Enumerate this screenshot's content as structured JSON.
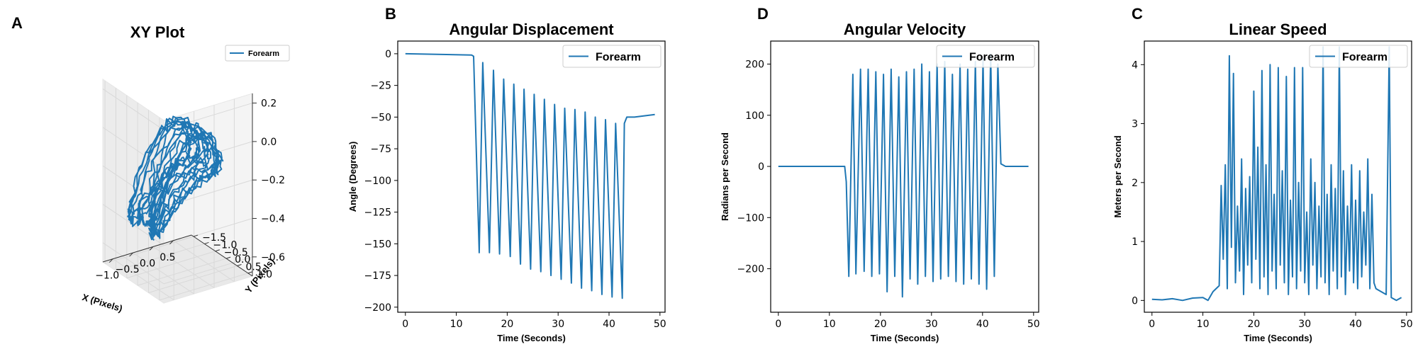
{
  "colors": {
    "series": "#1f77b4",
    "pane": "#f2f2f2",
    "grid": "#d9d9d9"
  },
  "chart_data": [
    {
      "id": "xyplot",
      "panel_label": "A",
      "type": "line3d",
      "title": "XY Plot",
      "xlabel": "X (Pixels)",
      "ylabel": "Y (Pixels)",
      "zlabel": "",
      "xlim": [
        -1.25,
        0.95
      ],
      "ylim": [
        -1.6,
        1.2
      ],
      "zlim": [
        -0.7,
        0.25
      ],
      "xticks": [
        "−1.0",
        "−0.5",
        "0.0",
        "0.5"
      ],
      "xtick_values": [
        -1.0,
        -0.5,
        0.0,
        0.5
      ],
      "yticks": [
        "−1.5",
        "−1.0",
        "−0.5",
        "0.0",
        "0.5",
        "1.0"
      ],
      "ytick_values": [
        -1.5,
        -1.0,
        -0.5,
        0.0,
        0.5,
        1.0
      ],
      "zticks": [
        "−0.6",
        "−0.4",
        "−0.2",
        "0.0",
        "0.2"
      ],
      "ztick_values": [
        -0.6,
        -0.4,
        -0.2,
        0.0,
        0.2
      ],
      "legend": "top-right",
      "series": [
        {
          "name": "Forearm",
          "trajectory": "oscillating 3D path, about 15 loops"
        }
      ]
    },
    {
      "id": "angdisp",
      "panel_label": "B",
      "type": "line",
      "title": "Angular Displacement",
      "xlabel": "Time (Seconds)",
      "ylabel": "Angle (Degrees)",
      "xlim": [
        -1.5,
        51
      ],
      "ylim": [
        -204,
        10
      ],
      "xticks": [
        "0",
        "10",
        "20",
        "30",
        "40",
        "50"
      ],
      "xtick_values": [
        0,
        10,
        20,
        30,
        40,
        50
      ],
      "yticks": [
        "0",
        "−25",
        "−50",
        "−75",
        "−100",
        "−125",
        "−150",
        "−175",
        "−200"
      ],
      "ytick_values": [
        0,
        -25,
        -50,
        -75,
        -100,
        -125,
        -150,
        -175,
        -200
      ],
      "legend": "top-right",
      "series": [
        {
          "name": "Forearm",
          "x": [
            0,
            13.0,
            13.4,
            14.5,
            15.2,
            16.5,
            17.3,
            18.5,
            19.3,
            20.6,
            21.3,
            22.6,
            23.3,
            24.6,
            25.3,
            26.6,
            27.3,
            28.6,
            29.3,
            30.6,
            31.3,
            32.6,
            33.3,
            34.6,
            35.3,
            36.6,
            37.3,
            38.6,
            39.3,
            40.6,
            41.3,
            42.6,
            43.0,
            43.5,
            45.0,
            49.0
          ],
          "y": [
            0,
            -1,
            -2,
            -157,
            -7,
            -157,
            -13,
            -158,
            -20,
            -160,
            -24,
            -166,
            -28,
            -170,
            -32,
            -172,
            -36,
            -175,
            -40,
            -178,
            -43,
            -181,
            -44,
            -185,
            -46,
            -187,
            -50,
            -190,
            -52,
            -192,
            -55,
            -193,
            -55,
            -50,
            -50,
            -48
          ]
        }
      ]
    },
    {
      "id": "angvel",
      "panel_label": "D",
      "type": "line",
      "title": "Angular Velocity",
      "xlabel": "Time (Seconds)",
      "ylabel": "Radians per Second",
      "xlim": [
        -1.5,
        51
      ],
      "ylim": [
        -285,
        245
      ],
      "xticks": [
        "0",
        "10",
        "20",
        "30",
        "40",
        "50"
      ],
      "xtick_values": [
        0,
        10,
        20,
        30,
        40,
        50
      ],
      "yticks": [
        "200",
        "100",
        "0",
        "−100",
        "−200"
      ],
      "ytick_values": [
        200,
        100,
        0,
        -100,
        -200
      ],
      "legend": "top-right",
      "series": [
        {
          "name": "Forearm",
          "x": [
            0,
            13.0,
            13.3,
            13.8,
            14.6,
            15.2,
            16.1,
            16.8,
            17.6,
            18.3,
            19.1,
            19.8,
            20.6,
            21.3,
            22.1,
            22.8,
            23.6,
            24.3,
            25.1,
            25.8,
            26.6,
            27.3,
            28.1,
            28.8,
            29.6,
            30.3,
            31.1,
            31.8,
            32.6,
            33.3,
            34.1,
            34.8,
            35.6,
            36.3,
            37.1,
            37.8,
            38.6,
            39.3,
            40.1,
            40.8,
            41.6,
            42.3,
            43.0,
            43.6,
            44.5,
            49.0
          ],
          "y": [
            0,
            0,
            -30,
            -215,
            180,
            -210,
            190,
            -205,
            190,
            -215,
            185,
            -210,
            180,
            -245,
            190,
            -215,
            175,
            -255,
            185,
            -220,
            190,
            -230,
            200,
            -215,
            185,
            -225,
            200,
            -220,
            205,
            -215,
            180,
            -225,
            200,
            -230,
            190,
            -220,
            205,
            -230,
            210,
            -240,
            220,
            -215,
            200,
            5,
            0,
            0
          ]
        }
      ]
    },
    {
      "id": "linspeed",
      "panel_label": "C",
      "type": "line",
      "title": "Linear Speed",
      "xlabel": "Time (Seconds)",
      "ylabel": "Meters per Second",
      "xlim": [
        -1.5,
        51
      ],
      "ylim": [
        -0.2,
        4.4
      ],
      "xticks": [
        "0",
        "10",
        "20",
        "30",
        "40",
        "50"
      ],
      "xtick_values": [
        0,
        10,
        20,
        30,
        40,
        50
      ],
      "yticks": [
        "0",
        "1",
        "2",
        "3",
        "4"
      ],
      "ytick_values": [
        0,
        1,
        2,
        3,
        4
      ],
      "legend": "top-right",
      "series": [
        {
          "name": "Forearm",
          "x": [
            0,
            2,
            4,
            6,
            8,
            10,
            11,
            12,
            13.2,
            13.6,
            14.0,
            14.4,
            14.8,
            15.2,
            15.6,
            16.0,
            16.4,
            16.8,
            17.2,
            17.6,
            18.0,
            18.4,
            18.8,
            19.2,
            19.6,
            20.0,
            20.4,
            20.8,
            21.2,
            21.6,
            22.0,
            22.4,
            22.8,
            23.2,
            23.6,
            24.0,
            24.4,
            24.8,
            25.2,
            25.6,
            26.0,
            26.4,
            26.8,
            27.2,
            27.6,
            28.0,
            28.4,
            28.8,
            29.2,
            29.6,
            30.0,
            30.4,
            30.8,
            31.2,
            31.6,
            32.0,
            32.4,
            32.8,
            33.2,
            33.6,
            34.0,
            34.4,
            34.8,
            35.2,
            35.6,
            36.0,
            36.4,
            36.8,
            37.2,
            37.6,
            38.0,
            38.4,
            38.8,
            39.2,
            39.6,
            40.0,
            40.4,
            40.8,
            41.2,
            41.6,
            42.0,
            42.4,
            42.8,
            43.2,
            43.6,
            44.0,
            45.0,
            46.0,
            46.6,
            47.0,
            48.0,
            49.0
          ],
          "y": [
            0.02,
            0.01,
            0.03,
            0.0,
            0.04,
            0.05,
            0.0,
            0.15,
            0.25,
            1.95,
            0.7,
            2.3,
            0.2,
            4.15,
            0.9,
            3.85,
            0.3,
            1.6,
            0.5,
            2.4,
            0.1,
            1.9,
            0.6,
            2.1,
            0.3,
            3.55,
            0.7,
            2.6,
            0.2,
            3.9,
            0.4,
            2.3,
            0.1,
            4.0,
            0.5,
            1.8,
            0.2,
            3.95,
            0.6,
            2.2,
            0.3,
            3.8,
            0.1,
            1.7,
            0.4,
            3.95,
            0.2,
            2.0,
            0.5,
            3.95,
            0.3,
            1.5,
            0.1,
            2.4,
            0.6,
            2.0,
            0.2,
            1.6,
            0.4,
            4.3,
            0.3,
            1.8,
            0.1,
            2.3,
            0.5,
            1.9,
            0.2,
            4.3,
            0.4,
            2.2,
            0.1,
            1.6,
            0.5,
            2.3,
            0.3,
            1.7,
            0.2,
            2.2,
            0.4,
            1.5,
            0.6,
            2.4,
            0.2,
            1.8,
            0.3,
            0.2,
            0.15,
            0.1,
            4.3,
            0.05,
            0.0,
            0.05
          ]
        }
      ]
    }
  ]
}
